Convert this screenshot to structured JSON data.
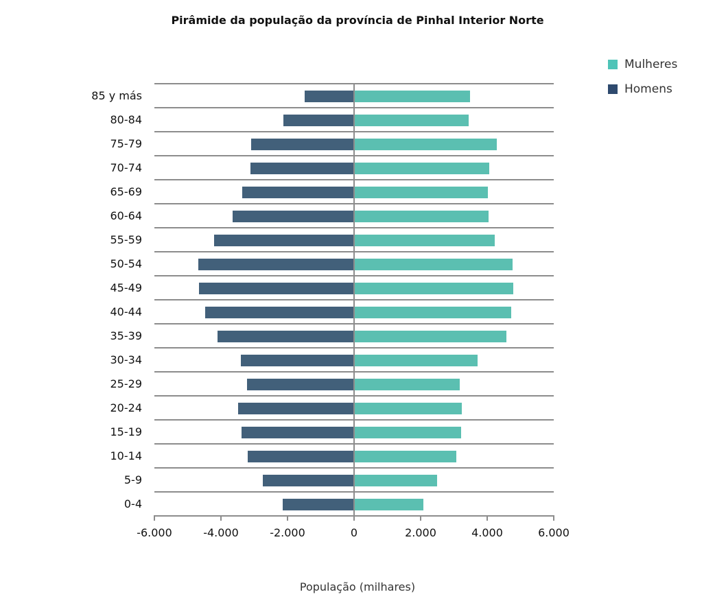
{
  "chart_data": {
    "type": "bar",
    "orientation": "horizontal",
    "title": "Pirâmide da população da província de Pinhal Interior Norte",
    "xlabel": "População (milhares)",
    "ylabel": "",
    "xlim": [
      -6000,
      6000
    ],
    "xticks": [
      -6000,
      -4000,
      -2000,
      0,
      2000,
      4000,
      6000
    ],
    "xtick_labels": [
      "-6.000",
      "-4.000",
      "-2.000",
      "0",
      "2.000",
      "4.000",
      "6.000"
    ],
    "legend_position": "top-right",
    "grid": true,
    "categories": [
      "85 y más",
      "80-84",
      "75-79",
      "70-74",
      "65-69",
      "60-64",
      "55-59",
      "50-54",
      "45-49",
      "40-44",
      "35-39",
      "30-34",
      "25-29",
      "20-24",
      "15-19",
      "10-14",
      "5-9",
      "0-4"
    ],
    "series": [
      {
        "name": "Mulheres",
        "color": "#4fc4b8",
        "values": [
          3480,
          3440,
          4290,
          4060,
          4020,
          4040,
          4230,
          4760,
          4780,
          4720,
          4580,
          3710,
          3180,
          3240,
          3220,
          3070,
          2500,
          2080
        ]
      },
      {
        "name": "Homens",
        "color": "#2e4a6e",
        "values": [
          -1490,
          -2120,
          -3090,
          -3110,
          -3360,
          -3650,
          -4210,
          -4680,
          -4660,
          -4470,
          -4100,
          -3400,
          -3220,
          -3490,
          -3380,
          -3200,
          -2740,
          -2140
        ]
      }
    ]
  },
  "legend": {
    "items": [
      {
        "label": "Mulheres",
        "color": "#4fc4b8"
      },
      {
        "label": "Homens",
        "color": "#2e4a6e"
      }
    ]
  }
}
